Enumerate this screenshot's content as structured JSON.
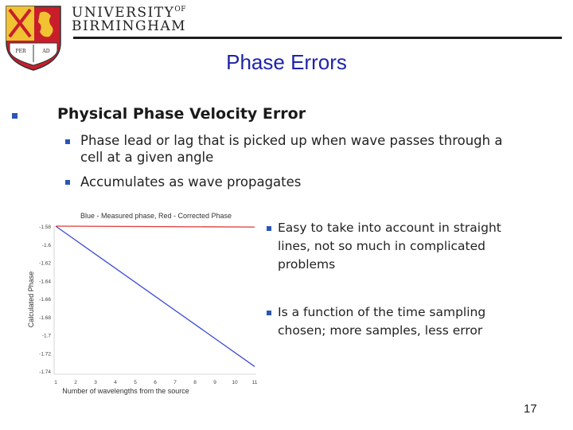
{
  "header": {
    "university_line1": "UNIVERSITY",
    "university_of": "OF",
    "university_line2": "BIRMINGHAM",
    "crest_motto_left": "PER",
    "crest_motto_right": "AD"
  },
  "slide": {
    "title": "Phase Errors",
    "level1": "Physical Phase Velocity Error",
    "sub_bullets": [
      "Phase lead or lag that is picked up when wave passes through a cell at a given angle",
      "Accumulates as wave propagates"
    ],
    "right_bullets": [
      "Easy to take into account in straight lines, not so much in complicated problems",
      "Is a function of the time sampling chosen; more samples, less error"
    ],
    "page_number": "17",
    "bullet_color": "#2b55b6",
    "title_color": "#1f24a8"
  },
  "chart_data": {
    "type": "line",
    "title": "Blue - Measured phase, Red - Corrected Phase",
    "xlabel": "Number of wavelengths from the source",
    "ylabel": "Calculated Phase",
    "x_ticks": [
      "1",
      "2",
      "3",
      "4",
      "5",
      "6",
      "7",
      "8",
      "9",
      "10",
      "11"
    ],
    "y_ticks": [
      "-1.58",
      "-1.6",
      "-1.62",
      "-1.64",
      "-1.66",
      "-1.68",
      "-1.7",
      "-1.72",
      "-1.74"
    ],
    "xlim": [
      1,
      11
    ],
    "ylim": [
      -1.74,
      -1.58
    ],
    "series": [
      {
        "color": "#3b4bd6",
        "x": [
          1,
          11
        ],
        "y": [
          -1.58,
          -1.735
        ]
      },
      {
        "color": "#e03a3a",
        "x": [
          1,
          11
        ],
        "y": [
          -1.58,
          -1.581
        ]
      }
    ]
  }
}
